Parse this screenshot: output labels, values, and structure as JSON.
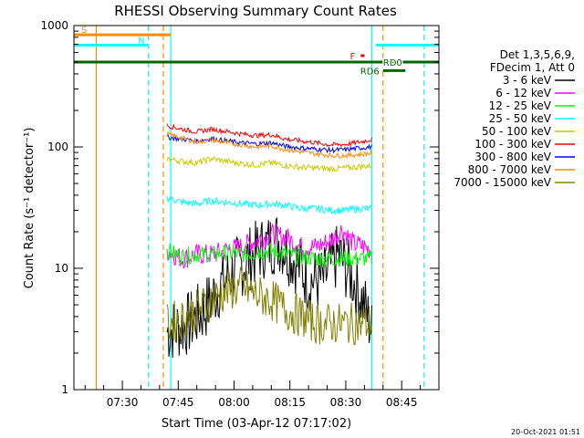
{
  "chart_data": {
    "type": "line",
    "title": "RHESSI Observing Summary Count Rates",
    "xlabel": "Start Time (03-Apr-12 07:17:02)",
    "ylabel": "Count Rate (s⁻¹ detector⁻¹)",
    "yscale": "log",
    "ylim": [
      1,
      1000
    ],
    "xlim": [
      "07:17",
      "08:55"
    ],
    "x_ticks": [
      "07:30",
      "07:45",
      "08:00",
      "08:15",
      "08:30",
      "08:45"
    ],
    "y_ticks": [
      "1",
      "10",
      "100",
      "1000"
    ],
    "grid": false,
    "legend_position": "right",
    "legend_header": [
      "Det 1,3,5,6,9,",
      "FDecim 1, Att 0"
    ],
    "series": [
      {
        "name": "3 - 6 keV",
        "color": "#000000",
        "points": [
          [
            "07:42",
            3
          ],
          [
            "07:48",
            3.5
          ],
          [
            "07:52",
            4.5
          ],
          [
            "07:56",
            7
          ],
          [
            "08:00",
            9.5
          ],
          [
            "08:04",
            12
          ],
          [
            "08:08",
            15
          ],
          [
            "08:12",
            17
          ],
          [
            "08:16",
            12
          ],
          [
            "08:20",
            8
          ],
          [
            "08:24",
            8
          ],
          [
            "08:28",
            13
          ],
          [
            "08:32",
            8
          ],
          [
            "08:35",
            5
          ],
          [
            "08:37",
            3
          ]
        ]
      },
      {
        "name": "6 - 12 keV",
        "color": "#ff00ff",
        "points": [
          [
            "07:42",
            14
          ],
          [
            "07:46",
            12
          ],
          [
            "07:50",
            13
          ],
          [
            "07:54",
            13
          ],
          [
            "07:58",
            14
          ],
          [
            "08:02",
            15
          ],
          [
            "08:06",
            17
          ],
          [
            "08:10",
            19
          ],
          [
            "08:14",
            18
          ],
          [
            "08:18",
            15
          ],
          [
            "08:22",
            15
          ],
          [
            "08:26",
            17
          ],
          [
            "08:29",
            21
          ],
          [
            "08:32",
            16
          ],
          [
            "08:35",
            15
          ],
          [
            "08:37",
            14
          ]
        ]
      },
      {
        "name": "12 - 25 keV",
        "color": "#00ff00",
        "points": [
          [
            "07:42",
            14
          ],
          [
            "07:46",
            12.5
          ],
          [
            "07:50",
            13
          ],
          [
            "07:54",
            13
          ],
          [
            "07:58",
            13.5
          ],
          [
            "08:02",
            13
          ],
          [
            "08:06",
            13.5
          ],
          [
            "08:10",
            14
          ],
          [
            "08:14",
            13
          ],
          [
            "08:18",
            12.5
          ],
          [
            "08:22",
            12
          ],
          [
            "08:26",
            12
          ],
          [
            "08:30",
            12
          ],
          [
            "08:34",
            12
          ],
          [
            "08:37",
            12
          ]
        ]
      },
      {
        "name": "25 - 50 keV",
        "color": "#00ffff",
        "points": [
          [
            "07:42",
            38
          ],
          [
            "07:46",
            35
          ],
          [
            "07:50",
            34
          ],
          [
            "07:54",
            36
          ],
          [
            "07:58",
            35
          ],
          [
            "08:02",
            34
          ],
          [
            "08:06",
            33
          ],
          [
            "08:10",
            34
          ],
          [
            "08:14",
            33
          ],
          [
            "08:18",
            31
          ],
          [
            "08:22",
            31
          ],
          [
            "08:26",
            30
          ],
          [
            "08:30",
            30
          ],
          [
            "08:34",
            31
          ],
          [
            "08:37",
            31
          ]
        ]
      },
      {
        "name": "50 - 100 keV",
        "color": "#cccc00",
        "points": [
          [
            "07:42",
            80
          ],
          [
            "07:46",
            76
          ],
          [
            "07:50",
            74
          ],
          [
            "07:54",
            80
          ],
          [
            "07:58",
            76
          ],
          [
            "08:02",
            73
          ],
          [
            "08:06",
            71
          ],
          [
            "08:10",
            74
          ],
          [
            "08:14",
            70
          ],
          [
            "08:18",
            68
          ],
          [
            "08:22",
            67
          ],
          [
            "08:26",
            66
          ],
          [
            "08:30",
            67
          ],
          [
            "08:34",
            69
          ],
          [
            "08:37",
            70
          ]
        ]
      },
      {
        "name": "100 - 300 keV",
        "color": "#ff0000",
        "points": [
          [
            "07:42",
            150
          ],
          [
            "07:46",
            140
          ],
          [
            "07:50",
            133
          ],
          [
            "07:54",
            140
          ],
          [
            "07:58",
            134
          ],
          [
            "08:02",
            128
          ],
          [
            "08:06",
            124
          ],
          [
            "08:10",
            126
          ],
          [
            "08:14",
            116
          ],
          [
            "08:18",
            112
          ],
          [
            "08:22",
            108
          ],
          [
            "08:26",
            104
          ],
          [
            "08:30",
            105
          ],
          [
            "08:34",
            110
          ],
          [
            "08:37",
            115
          ]
        ]
      },
      {
        "name": "300 - 800 keV",
        "color": "#0000ff",
        "points": [
          [
            "07:42",
            120
          ],
          [
            "07:46",
            116
          ],
          [
            "07:50",
            112
          ],
          [
            "07:54",
            117
          ],
          [
            "07:58",
            112
          ],
          [
            "08:02",
            108
          ],
          [
            "08:06",
            106
          ],
          [
            "08:10",
            108
          ],
          [
            "08:14",
            101
          ],
          [
            "08:18",
            98
          ],
          [
            "08:22",
            96
          ],
          [
            "08:26",
            94
          ],
          [
            "08:30",
            95
          ],
          [
            "08:34",
            98
          ],
          [
            "08:37",
            100
          ]
        ]
      },
      {
        "name": "800 - 7000 keV",
        "color": "#ff8c00",
        "points": [
          [
            "07:42",
            128
          ],
          [
            "07:46",
            118
          ],
          [
            "07:50",
            110
          ],
          [
            "07:54",
            114
          ],
          [
            "07:58",
            108
          ],
          [
            "08:02",
            104
          ],
          [
            "08:06",
            100
          ],
          [
            "08:10",
            102
          ],
          [
            "08:14",
            95
          ],
          [
            "08:18",
            91
          ],
          [
            "08:22",
            88
          ],
          [
            "08:26",
            85
          ],
          [
            "08:30",
            85
          ],
          [
            "08:34",
            87
          ],
          [
            "08:37",
            89
          ]
        ]
      },
      {
        "name": "7000 - 15000 keV",
        "color": "#808000",
        "points": [
          [
            "07:42",
            3.5
          ],
          [
            "07:46",
            3.8
          ],
          [
            "07:50",
            4.5
          ],
          [
            "07:54",
            5.5
          ],
          [
            "07:58",
            6.5
          ],
          [
            "08:02",
            7
          ],
          [
            "08:06",
            6
          ],
          [
            "08:10",
            5.5
          ],
          [
            "08:14",
            4.5
          ],
          [
            "08:18",
            4
          ],
          [
            "08:22",
            3.5
          ],
          [
            "08:26",
            3.5
          ],
          [
            "08:30",
            3.5
          ],
          [
            "08:34",
            3.5
          ],
          [
            "08:37",
            3.5
          ]
        ]
      }
    ],
    "flag_bars": [
      {
        "label": "S",
        "color": "#ff8c00",
        "x1": "07:17",
        "x2": "07:43",
        "y": 840
      },
      {
        "label": "N",
        "color": "#00ffff",
        "x1": "07:17",
        "x2": "07:37",
        "y": 690
      },
      {
        "label": "F",
        "color": "#ff0000",
        "x1": "08:34",
        "x2": "08:35",
        "y": 565
      },
      {
        "label": "RD0",
        "color": "#006400",
        "x1": "07:17",
        "x2": "08:55",
        "y": 500
      },
      {
        "label": "RD6",
        "color": "#006400",
        "x1": "08:40",
        "x2": "08:46",
        "y": 425
      },
      {
        "label": "",
        "color": "#00ffff",
        "x1": "08:38",
        "x2": "08:55",
        "y": 690
      }
    ],
    "vertical_markers": [
      {
        "x": "07:23",
        "color": "#ff8c00",
        "style": "solid"
      },
      {
        "x": "07:37",
        "color": "#00ffff",
        "style": "dashed"
      },
      {
        "x": "07:41",
        "color": "#ff8c00",
        "style": "dashed"
      },
      {
        "x": "07:43",
        "color": "#00ffff",
        "style": "solid"
      },
      {
        "x": "08:37",
        "color": "#00ffff",
        "style": "solid"
      },
      {
        "x": "08:40",
        "color": "#ff8c00",
        "style": "dashed"
      },
      {
        "x": "08:51",
        "color": "#00ffff",
        "style": "dashed"
      }
    ],
    "timestamp": "20-Oct-2021 01:51"
  }
}
